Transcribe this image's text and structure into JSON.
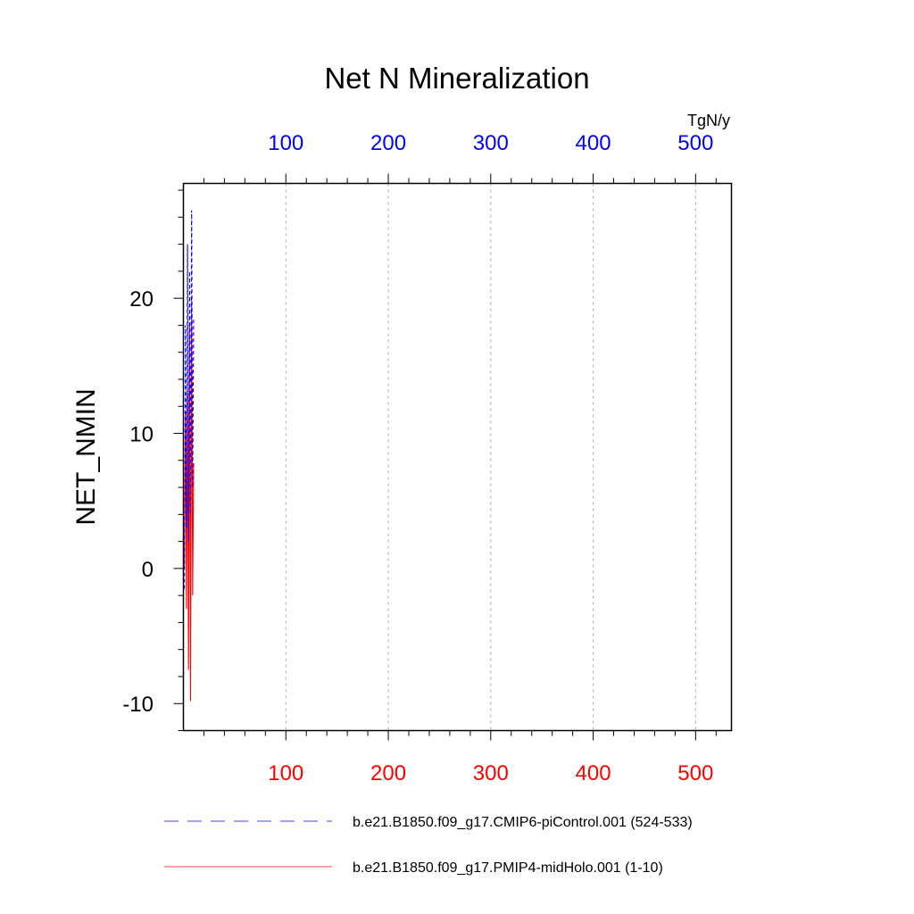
{
  "chart_data": {
    "type": "line",
    "title": "Net N Mineralization",
    "ylabel": "NET_NMIN",
    "units": "TgN/y",
    "xlim": [
      0,
      535
    ],
    "ylim": [
      -12,
      28.5
    ],
    "grid": "vertical dashed",
    "top_axis_color": "#0000ff",
    "bottom_axis_color": "#ff0000",
    "x_ticks": [
      100,
      200,
      300,
      400,
      500
    ],
    "x_tick_labels": [
      "100",
      "200",
      "300",
      "400",
      "500"
    ],
    "y_ticks": [
      -10,
      0,
      10,
      20
    ],
    "y_tick_labels": [
      "-10",
      "0",
      "10",
      "20"
    ],
    "series": [
      {
        "name": "b.e21.B1850.f09_g17.CMIP6-piControl.001 (524-533)",
        "color": "#0000ff",
        "dash": "dashed",
        "x": [
          1,
          2,
          3,
          4,
          5,
          6,
          7,
          8,
          9,
          10
        ],
        "values": [
          -1.5,
          18,
          3,
          24,
          2,
          22,
          4,
          26.5,
          6,
          18.5
        ]
      },
      {
        "name": "b.e21.B1850.f09_g17.PMIP4-midHolo.001 (1-10)",
        "color": "#ff0000",
        "dash": "solid",
        "x": [
          1,
          2,
          3,
          4,
          5,
          6,
          7,
          8,
          9,
          10
        ],
        "values": [
          0,
          11.5,
          -3,
          13,
          -7.5,
          18,
          -9.8,
          20,
          -2,
          7.8
        ]
      }
    ]
  }
}
